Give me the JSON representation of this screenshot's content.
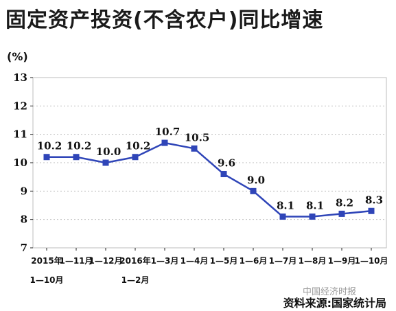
{
  "title": "固定资产投资(不含农户)同比增速",
  "unit": "(%)",
  "source": "资料来源:国家统计局",
  "watermark": "中国经济时报",
  "colors": {
    "series": "#2f45b8",
    "grid": "#bdbdbd",
    "axis": "#222222"
  },
  "chart_data": {
    "type": "line",
    "title": "固定资产投资(不含农户)同比增速",
    "xlabel": "",
    "ylabel": "(%)",
    "ylim": [
      7,
      13
    ],
    "yticks": [
      7,
      8,
      9,
      10,
      11,
      12,
      13
    ],
    "grid": true,
    "categories": [
      [
        "2015年",
        "1—10月"
      ],
      [
        "1—11月"
      ],
      [
        "1—12月"
      ],
      [
        "2016年",
        "1—2月"
      ],
      [
        "1—3月"
      ],
      [
        "1—4月"
      ],
      [
        "1—5月"
      ],
      [
        "1—6月"
      ],
      [
        "1—7月"
      ],
      [
        "1—8月"
      ],
      [
        "1—9月"
      ],
      [
        "1—10月"
      ]
    ],
    "series": [
      {
        "values": [
          10.2,
          10.2,
          10.0,
          10.2,
          10.7,
          10.5,
          9.6,
          9.0,
          8.1,
          8.1,
          8.2,
          8.3
        ],
        "labels": [
          "10.2",
          "10.2",
          "10.0",
          "10.2",
          "10.7",
          "10.5",
          "9.6",
          "9.0",
          "8.1",
          "8.1",
          "8.2",
          "8.3"
        ]
      }
    ]
  }
}
